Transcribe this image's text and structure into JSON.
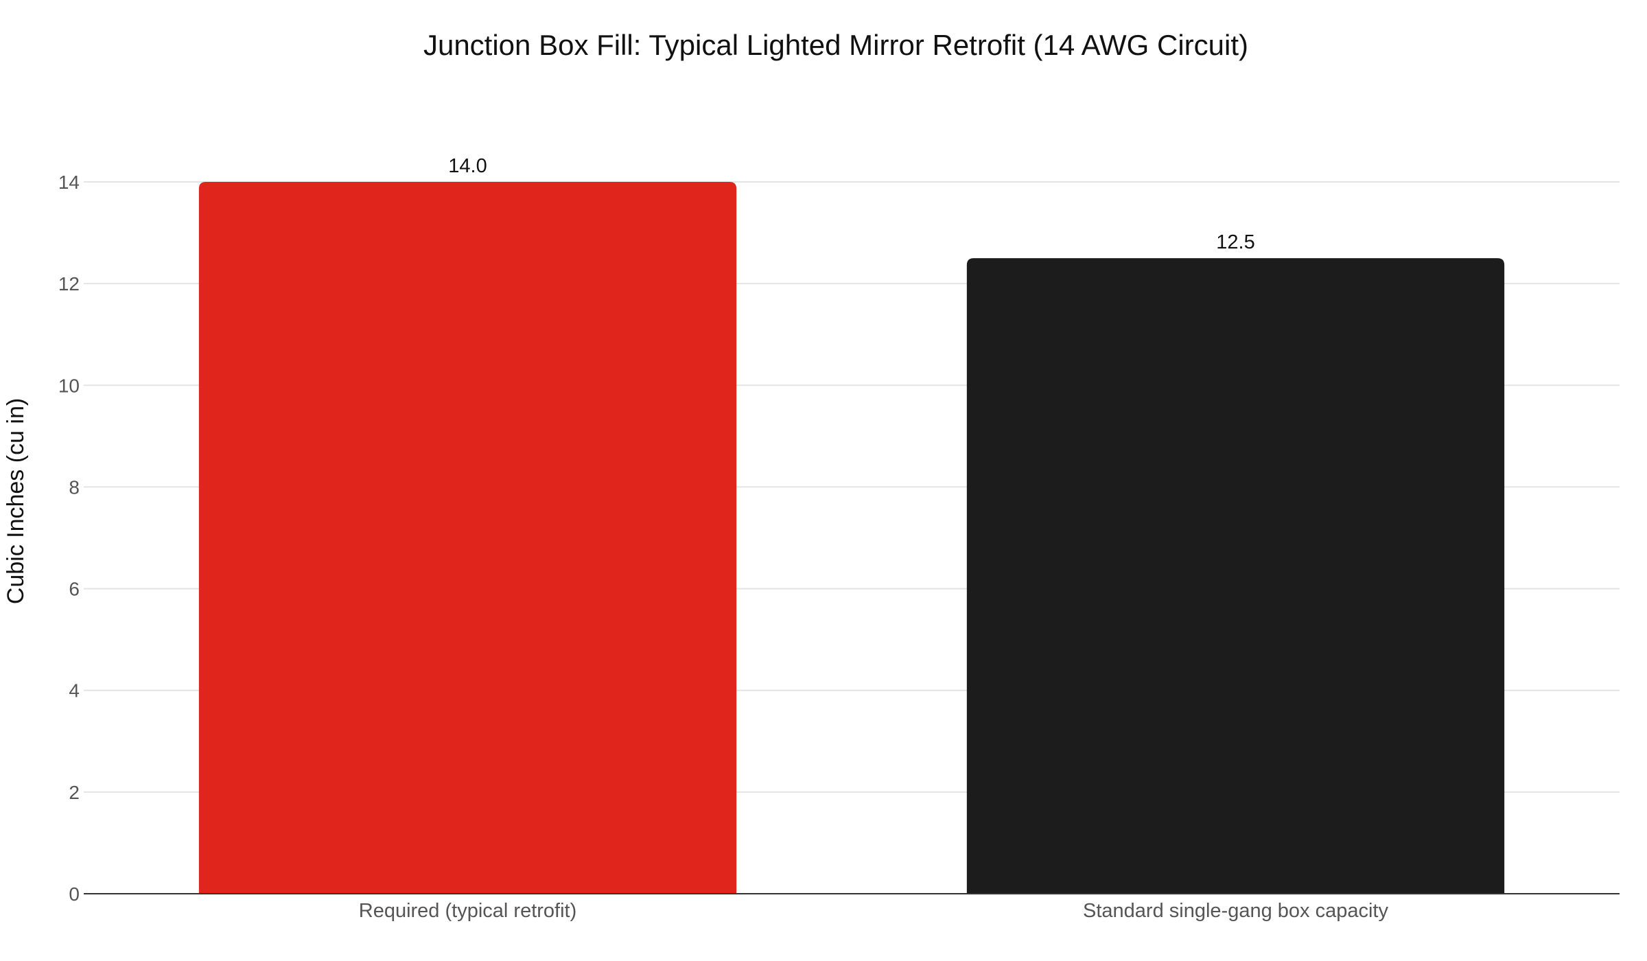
{
  "chart_data": {
    "type": "bar",
    "title": "Junction Box Fill: Typical Lighted Mirror Retrofit (14 AWG Circuit)",
    "xlabel": "",
    "ylabel": "Cubic Inches (cu in)",
    "categories": [
      "Required (typical retrofit)",
      "Standard single-gang box capacity"
    ],
    "values": [
      14.0,
      12.5
    ],
    "value_labels": [
      "14.0",
      "12.5"
    ],
    "colors": [
      "#e0261c",
      "#1c1c1c"
    ],
    "ylim": [
      0,
      14
    ],
    "yticks": [
      0,
      2,
      4,
      6,
      8,
      10,
      12,
      14
    ],
    "grid": true,
    "legend": "none"
  }
}
